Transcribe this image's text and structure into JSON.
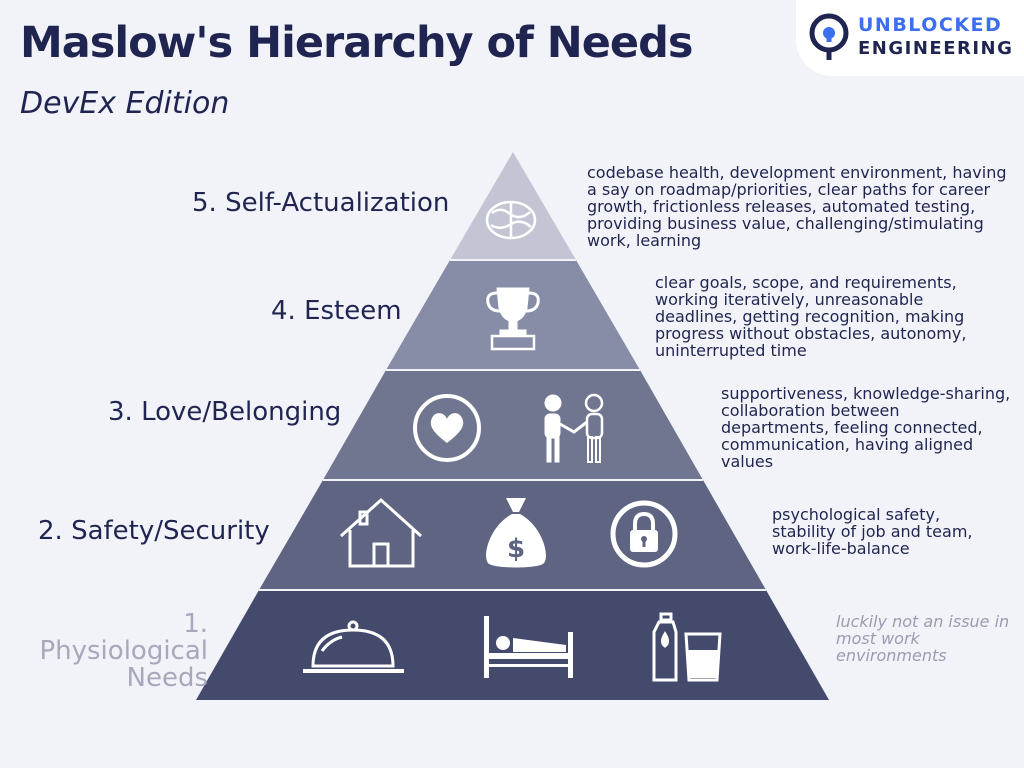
{
  "header": {
    "title": "Maslow's Hierarchy of Needs",
    "subtitle": "DevEx Edition"
  },
  "logo": {
    "line1": "UNBLOCKED",
    "line2": "ENGINEERING",
    "icon": "lock-icon"
  },
  "colors": {
    "background": "#f2f3f8",
    "title": "#1f2550",
    "logo_accent": "#3b6ff0",
    "tier5": "#c3c5d4",
    "tier4": "#878ca7",
    "tier3": "#70768f",
    "tier2": "#5e6482",
    "tier1": "#434a6c",
    "faded_text": "#a6a8bc"
  },
  "levels": [
    {
      "label": "5. Self-Actualization",
      "description": "codebase health, development environment, having a say on roadmap/priorities, clear paths for career growth, frictionless releases, automated testing,  providing business value, challenging/stimulating work, learning",
      "icons": [
        "brain-icon"
      ]
    },
    {
      "label": "4. Esteem",
      "description": "clear goals, scope, and requirements, working iteratively, unreasonable deadlines, getting recognition, making progress without obstacles, autonomy, uninterrupted time",
      "icons": [
        "trophy-icon"
      ]
    },
    {
      "label": "3. Love/Belonging",
      "description": "supportiveness, knowledge-sharing, collaboration between departments, feeling connected, communication, having aligned values",
      "icons": [
        "heart-icon",
        "handshake-icon"
      ]
    },
    {
      "label": "2. Safety/Security",
      "description": "psychological safety, stability of job and team, work-life-balance",
      "icons": [
        "house-icon",
        "money-bag-icon",
        "padlock-icon"
      ]
    },
    {
      "label": "1. Physiological Needs",
      "description": "luckily not an issue in most work environments",
      "icons": [
        "food-cloche-icon",
        "bed-icon",
        "water-bottle-icon"
      ]
    }
  ]
}
